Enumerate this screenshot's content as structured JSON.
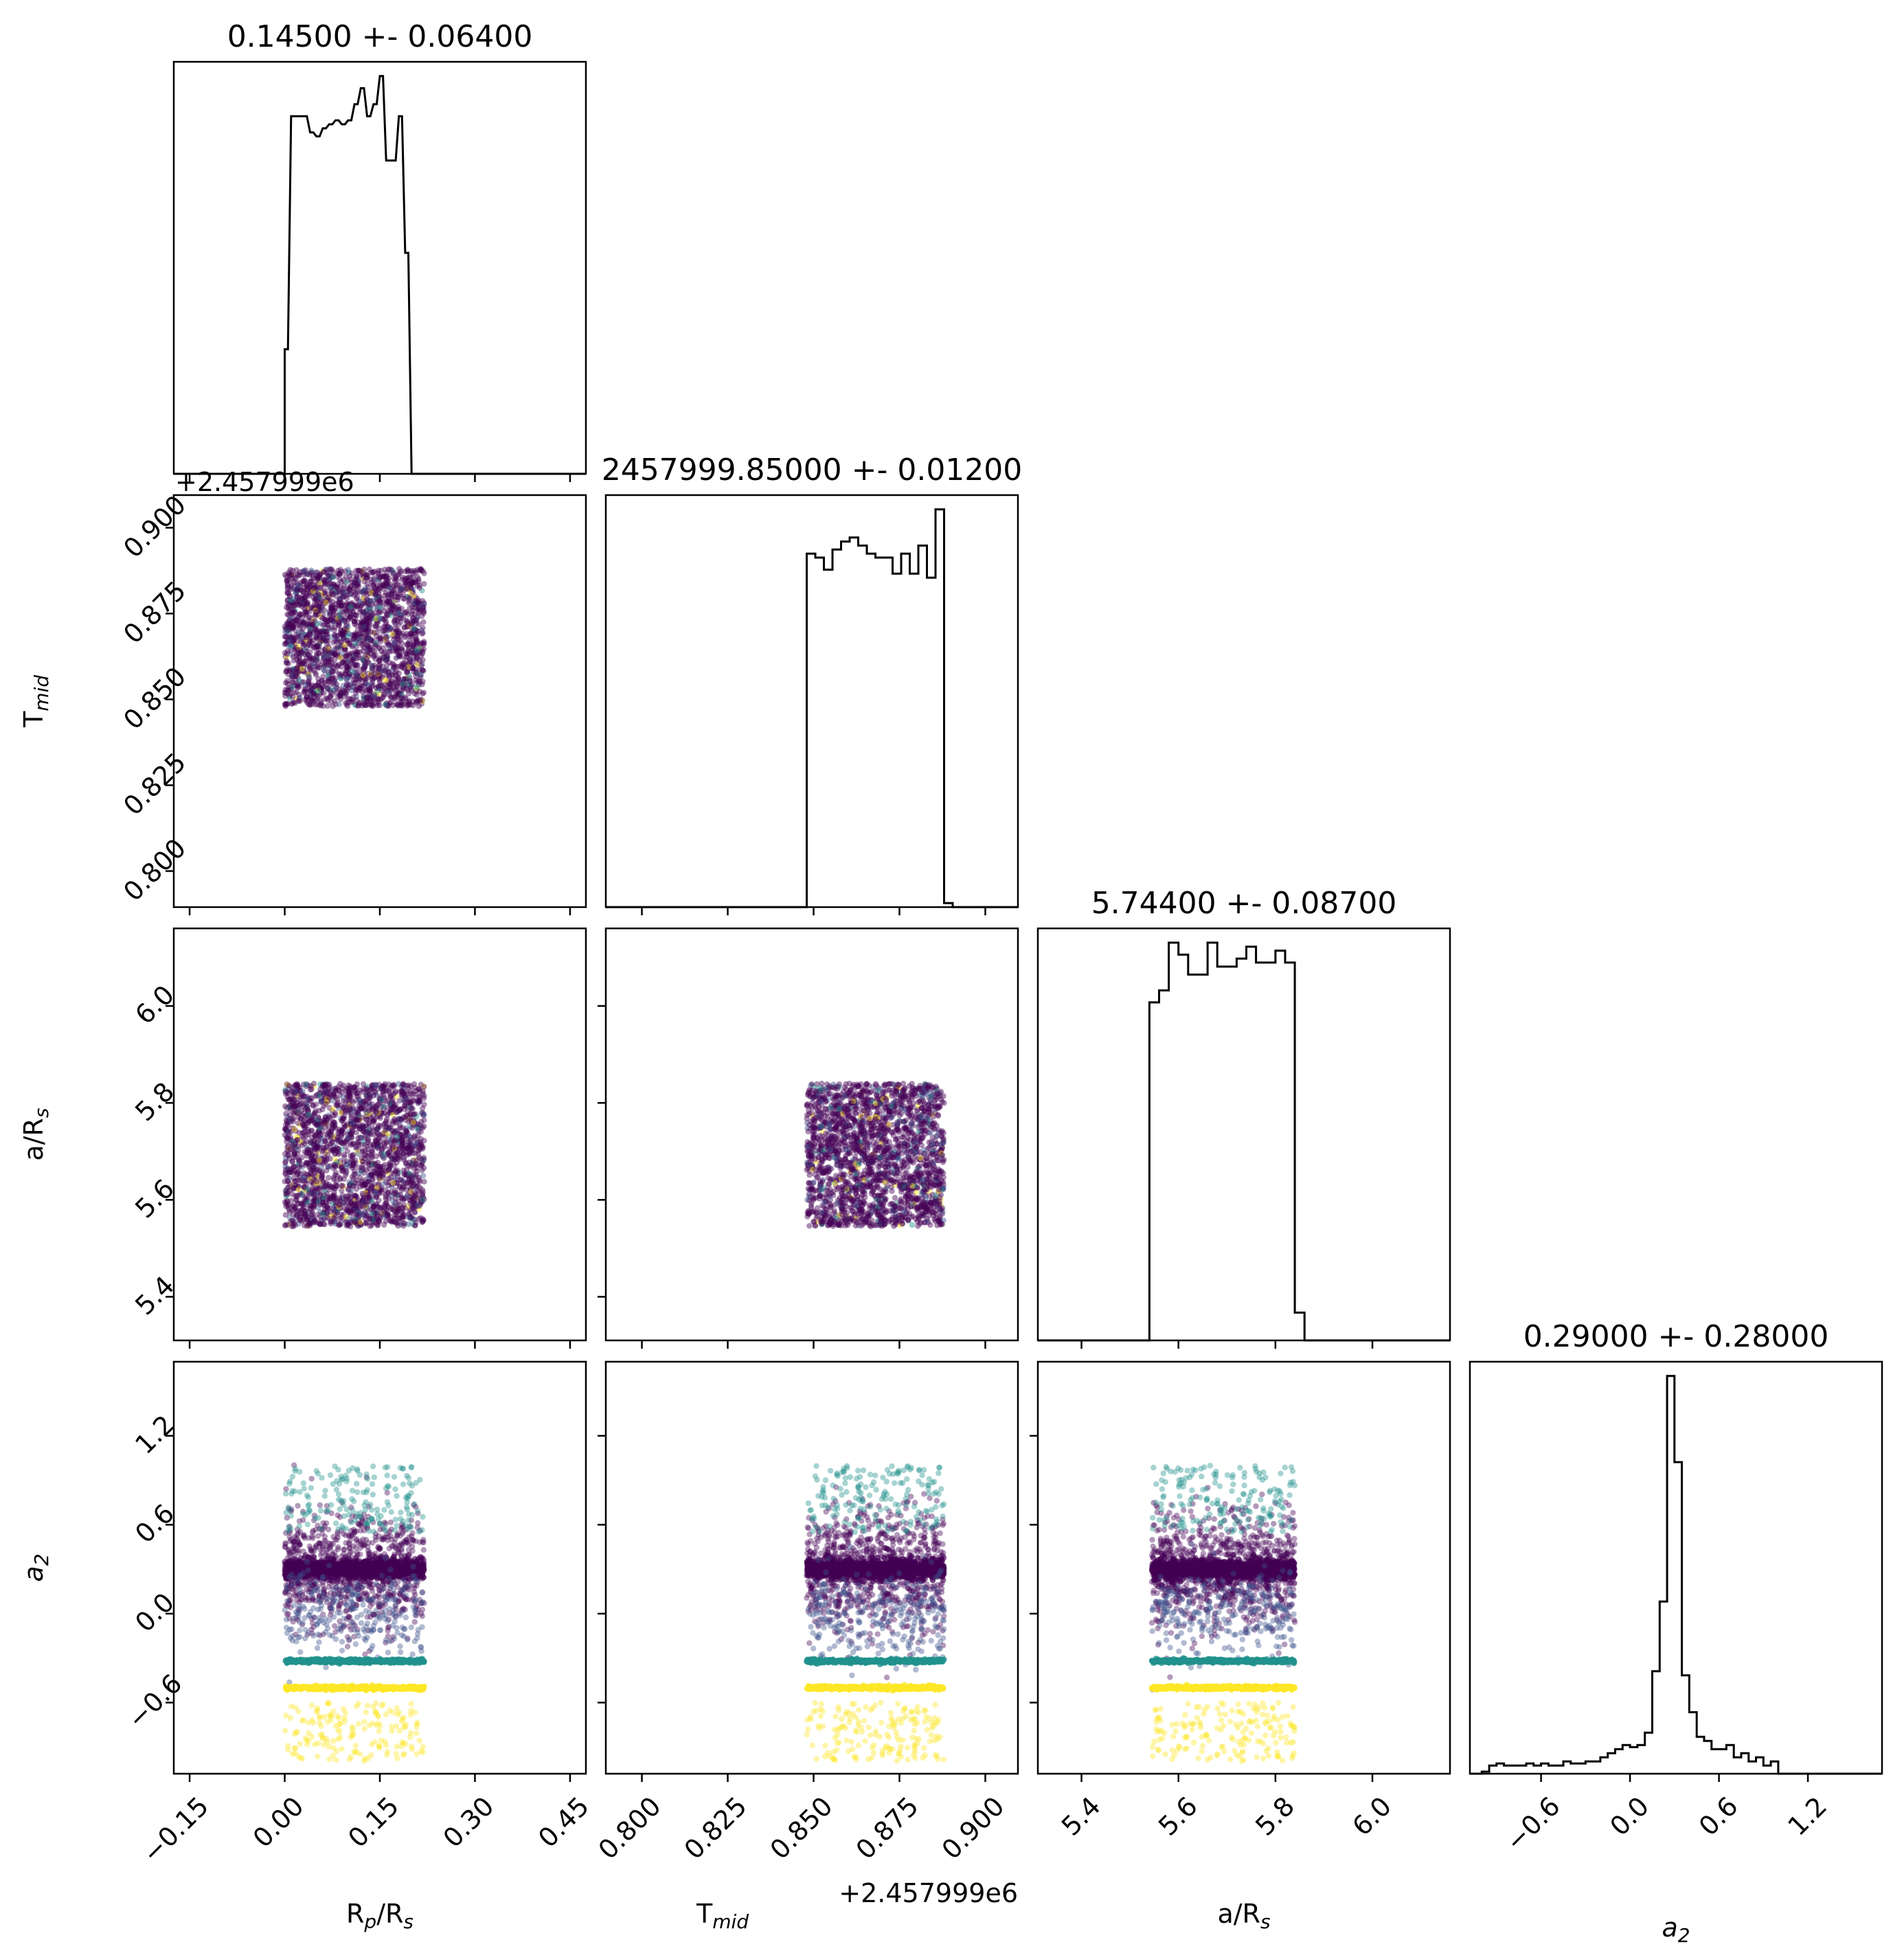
{
  "figure": {
    "type": "corner-plot",
    "colormap": [
      "#440154",
      "#3b528b",
      "#21918c",
      "#5ec962",
      "#fde725"
    ]
  },
  "parameters": [
    {
      "key": "rp",
      "label": "R_p/R_s",
      "label_main": "R",
      "label_sub": "p",
      "label_rest": "/R",
      "label_sub2": "s",
      "title": "0.14500 +- 0.06400",
      "ticks": [
        "−0.15",
        "0.00",
        "0.15",
        "0.30",
        "0.45"
      ],
      "tick_values": [
        -0.15,
        0.0,
        0.15,
        0.3,
        0.45
      ],
      "range": [
        -0.175,
        0.475
      ],
      "offset": ""
    },
    {
      "key": "tmid",
      "label": "T_mid",
      "label_main": "T",
      "label_sub": "mid",
      "title": "2457999.85000 +- 0.01200",
      "ticks": [
        "0.800",
        "0.825",
        "0.850",
        "0.875",
        "0.900"
      ],
      "tick_values": [
        0.8,
        0.825,
        0.85,
        0.875,
        0.9
      ],
      "range": [
        0.7895,
        0.9095
      ],
      "offset": "+2.457999e6"
    },
    {
      "key": "ars",
      "label": "a/R_s",
      "label_main": "a/R",
      "label_sub": "s",
      "title": "5.74400 +- 0.08700",
      "ticks": [
        "5.4",
        "5.6",
        "5.8",
        "6.0"
      ],
      "tick_values": [
        5.4,
        5.6,
        5.8,
        6.0
      ],
      "range": [
        5.31,
        6.16
      ],
      "offset": ""
    },
    {
      "key": "a2",
      "label": "a_2",
      "label_main": "a",
      "label_sub": "2",
      "title": "0.29000 +- 0.28000",
      "ticks": [
        "−0.6",
        "0.0",
        "0.6",
        "1.2"
      ],
      "tick_values": [
        -0.6,
        0.0,
        0.6,
        1.2
      ],
      "range": [
        -1.08,
        1.7
      ],
      "offset": ""
    }
  ],
  "chart_data": {
    "type": "scatter",
    "histograms": [
      {
        "param": "R_p/R_s",
        "bin_edges": [
          -0.175,
          0.475
        ],
        "bins_x": [
          -0.005,
          0.0,
          0.01,
          0.03,
          0.04,
          0.05,
          0.06,
          0.07,
          0.08,
          0.09,
          0.1,
          0.11,
          0.12,
          0.13,
          0.14,
          0.15,
          0.16,
          0.17,
          0.18,
          0.19,
          0.2,
          0.21,
          0.22,
          0.225
        ],
        "counts": [
          0,
          0.31,
          0.89,
          0.89,
          0.85,
          0.84,
          0.86,
          0.87,
          0.88,
          0.87,
          0.88,
          0.92,
          0.96,
          0.89,
          0.92,
          0.99,
          0.78,
          0.78,
          0.89,
          0.55,
          0.0,
          0,
          0,
          0
        ]
      },
      {
        "param": "T_mid",
        "bin_edges": [
          0.7895,
          0.9095
        ],
        "bins_x": [
          0.848,
          0.8505,
          0.853,
          0.8555,
          0.858,
          0.8605,
          0.863,
          0.8655,
          0.868,
          0.8705,
          0.873,
          0.8755,
          0.878,
          0.8805,
          0.883,
          0.8855,
          0.888
        ],
        "counts": [
          0.88,
          0.87,
          0.84,
          0.89,
          0.91,
          0.92,
          0.9,
          0.88,
          0.87,
          0.87,
          0.83,
          0.88,
          0.83,
          0.9,
          0.82,
          0.99,
          0.01
        ]
      },
      {
        "param": "a/R_s",
        "bin_edges": [
          5.31,
          6.16
        ],
        "bins_x": [
          5.54,
          5.56,
          5.58,
          5.6,
          5.62,
          5.64,
          5.66,
          5.68,
          5.7,
          5.72,
          5.74,
          5.76,
          5.78,
          5.8,
          5.82,
          5.84
        ],
        "counts": [
          0.85,
          0.88,
          1.0,
          0.97,
          0.92,
          0.92,
          1.0,
          0.94,
          0.94,
          0.96,
          0.99,
          0.95,
          0.95,
          0.98,
          0.95,
          0.07
        ]
      },
      {
        "param": "a_2",
        "bin_edges": [
          -1.08,
          1.7
        ],
        "bins_x": [
          -1.0,
          -0.95,
          -0.9,
          -0.85,
          -0.8,
          -0.75,
          -0.7,
          -0.65,
          -0.6,
          -0.55,
          -0.5,
          -0.45,
          -0.4,
          -0.35,
          -0.3,
          -0.25,
          -0.2,
          -0.15,
          -0.1,
          -0.05,
          0.0,
          0.05,
          0.1,
          0.15,
          0.2,
          0.25,
          0.3,
          0.35,
          0.4,
          0.45,
          0.5,
          0.55,
          0.6,
          0.65,
          0.7,
          0.75,
          0.8,
          0.85,
          0.9,
          0.95,
          1.0
        ],
        "counts": [
          0.005,
          0.02,
          0.025,
          0.02,
          0.02,
          0.02,
          0.025,
          0.02,
          0.025,
          0.02,
          0.02,
          0.03,
          0.025,
          0.025,
          0.03,
          0.03,
          0.04,
          0.05,
          0.06,
          0.07,
          0.065,
          0.07,
          0.1,
          0.25,
          0.42,
          0.97,
          0.76,
          0.24,
          0.15,
          0.09,
          0.08,
          0.06,
          0.06,
          0.07,
          0.04,
          0.05,
          0.03,
          0.04,
          0.02,
          0.03,
          0.0
        ]
      }
    ],
    "scatter_pairs": [
      {
        "x": "R_p/R_s",
        "y": "T_mid",
        "x_range": [
          0.0,
          0.22
        ],
        "y_range": [
          0.848,
          0.888
        ]
      },
      {
        "x": "R_p/R_s",
        "y": "a/R_s",
        "x_range": [
          0.0,
          0.22
        ],
        "y_range": [
          5.545,
          5.84
        ]
      },
      {
        "x": "T_mid",
        "y": "a/R_s",
        "x_range": [
          0.848,
          0.888
        ],
        "y_range": [
          5.545,
          5.84
        ]
      },
      {
        "x": "R_p/R_s",
        "y": "a_2",
        "x_range": [
          0.0,
          0.22
        ],
        "y_range": [
          -1.0,
          1.0
        ]
      },
      {
        "x": "T_mid",
        "y": "a_2",
        "x_range": [
          0.848,
          0.888
        ],
        "y_range": [
          -1.0,
          1.0
        ]
      },
      {
        "x": "a/R_s",
        "y": "a_2",
        "x_range": [
          5.545,
          5.84
        ],
        "y_range": [
          -1.0,
          1.0
        ]
      }
    ],
    "a2_bands": [
      {
        "y": 0.3,
        "spread": 0.03,
        "color": "#440154",
        "density": "dense-line"
      },
      {
        "y": 0.3,
        "spread": 0.2,
        "color": "#440154",
        "density": "high"
      },
      {
        "y": 0.0,
        "spread": 0.15,
        "color": "#3b528b",
        "density": "medium"
      },
      {
        "y": 0.85,
        "spread": 0.15,
        "color": "#21918c",
        "density": "low"
      },
      {
        "y": -0.32,
        "spread": 0.0,
        "color": "#21918c",
        "density": "line"
      },
      {
        "y": -0.5,
        "spread": 0.0,
        "color": "#fde725",
        "density": "line"
      },
      {
        "y": -0.8,
        "spread": 0.2,
        "color": "#fde725",
        "density": "low"
      }
    ]
  }
}
